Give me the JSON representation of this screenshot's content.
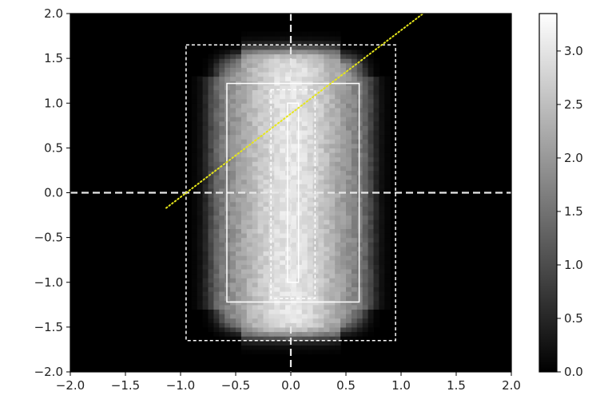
{
  "chart_data": {
    "type": "heatmap",
    "title": "",
    "xlabel": "",
    "ylabel": "",
    "xlim": [
      -2.0,
      2.0
    ],
    "ylim": [
      -2.0,
      2.0
    ],
    "x_ticks": [
      "−2.0",
      "−1.5",
      "−1.0",
      "−0.5",
      "0.0",
      "0.5",
      "1.0",
      "1.5",
      "2.0"
    ],
    "y_ticks": [
      "2.0",
      "1.5",
      "1.0",
      "0.5",
      "0.0",
      "−0.5",
      "−1.0",
      "−1.5",
      "−2.0"
    ],
    "x_tick_values": [
      -2.0,
      -1.5,
      -1.0,
      -0.5,
      0.0,
      0.5,
      1.0,
      1.5,
      2.0
    ],
    "y_tick_values": [
      2.0,
      1.5,
      1.0,
      0.5,
      0.0,
      -0.5,
      -1.0,
      -1.5,
      -2.0
    ],
    "colormap": "gray",
    "background_color": "#000000",
    "intensity_region": {
      "x": [
        -0.75,
        0.75
      ],
      "y": [
        -1.6,
        1.6
      ],
      "peak_value": 3.0,
      "edge_value": 1.0,
      "corner_rounding": 0.15
    },
    "colorbar": {
      "min": 0.0,
      "max": 3.35,
      "ticks": [
        "0.0",
        "0.5",
        "1.0",
        "1.5",
        "2.0",
        "2.5",
        "3.0"
      ],
      "tick_values": [
        0.0,
        0.5,
        1.0,
        1.5,
        2.0,
        2.5,
        3.0
      ]
    },
    "overlays": {
      "axis_crosshair": {
        "x": 0.0,
        "y": 0.0,
        "style": "dashed",
        "color": "#e8e8e8"
      },
      "rectangles": [
        {
          "name": "outer-dashed-box",
          "x": [
            -0.95,
            0.95
          ],
          "y": [
            -1.65,
            1.65
          ],
          "style": "dashed",
          "color": "#ffffff"
        },
        {
          "name": "middle-solid-box",
          "x": [
            -0.58,
            0.62
          ],
          "y": [
            -1.22,
            1.22
          ],
          "style": "solid",
          "color": "#ffffff"
        },
        {
          "name": "inner-dashed-box",
          "x": [
            -0.18,
            0.22
          ],
          "y": [
            -1.18,
            1.15
          ],
          "style": "dashed",
          "color": "#ffffff"
        },
        {
          "name": "narrow-solid-box",
          "x": [
            -0.03,
            0.07
          ],
          "y": [
            -1.0,
            1.0
          ],
          "style": "solid",
          "color": "#ffffff"
        }
      ],
      "line": {
        "name": "dotted-yellow-line",
        "x": [
          -1.13,
          1.2
        ],
        "y": [
          -0.17,
          2.0
        ],
        "style": "dotted",
        "color": "#e6e61a"
      }
    }
  }
}
